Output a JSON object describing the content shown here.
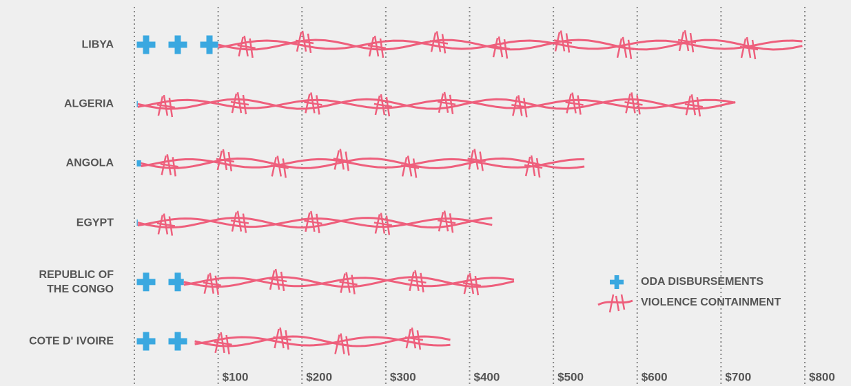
{
  "chart_data": {
    "type": "bar",
    "orientation": "horizontal",
    "stacked": true,
    "categories": [
      "LIBYA",
      "ALGERIA",
      "ANGOLA",
      "EGYPT",
      "REPUBLIC OF THE CONGO",
      "COTE D' IVOIRE"
    ],
    "series": [
      {
        "name": "ODA DISBURSEMENTS",
        "color": "#3aa8e0",
        "values": [
          100,
          4,
          8,
          4,
          59,
          72
        ]
      },
      {
        "name": "VIOLENCE CONTAINMENT",
        "color": "#ee5f7c",
        "values": [
          697,
          713,
          529,
          423,
          394,
          305
        ]
      }
    ],
    "xlim": [
      0,
      800
    ],
    "xticks": [
      {
        "value": 100,
        "label": "$100"
      },
      {
        "value": 200,
        "label": "$200"
      },
      {
        "value": 300,
        "label": "$300"
      },
      {
        "value": 400,
        "label": "$400"
      },
      {
        "value": 500,
        "label": "$500"
      },
      {
        "value": 600,
        "label": "$600"
      },
      {
        "value": 700,
        "label": "$700"
      },
      {
        "value": 800,
        "label": "$800"
      }
    ],
    "grid": true,
    "legend": "lower right"
  }
}
